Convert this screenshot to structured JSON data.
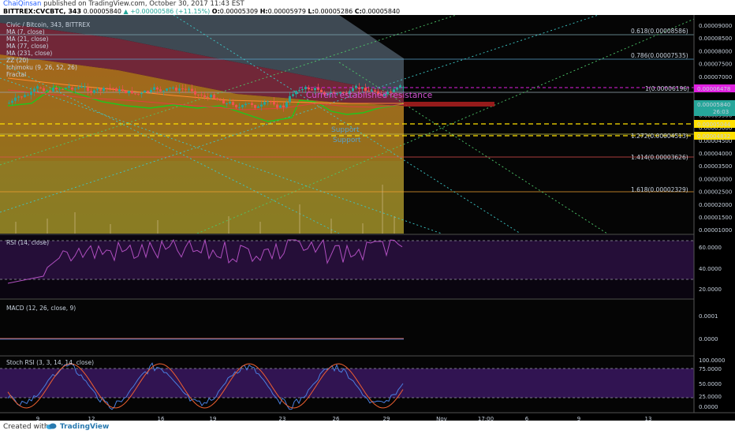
{
  "header": {
    "user": "ChaiQinsan",
    "published": "published on TradingView.com, October 30, 2017 11:43 EST",
    "symbol": "BITTREX:CVCBTC, 343",
    "price": "0.00005840",
    "change": "+0.00000586 (+11.15%)",
    "o_label": "O:",
    "o": "0.00005309",
    "h_label": "H:",
    "h": "0.00005979",
    "l_label": "L:",
    "l": "0.00005286",
    "c_label": "C:",
    "c": "0.00005840"
  },
  "legend": {
    "title": "Civic / Bitcoin, 343, BITTREX",
    "items": [
      "MA (7, close)",
      "MA (21, close)",
      "MA (77, close)",
      "MA (231, close)",
      "ZZ (20)",
      "Ichimoku (9, 26, 52, 26)",
      "Fractal"
    ]
  },
  "annotations": {
    "resistance": "Current established resistance",
    "support1": "Support",
    "support2": "Support"
  },
  "price_axis": {
    "ticks": [
      "0.00009000",
      "0.00008500",
      "0.00008000",
      "0.00007500",
      "0.00007000",
      "0.00006500",
      "0.00006000",
      "0.00005500",
      "0.00005000",
      "0.00004500",
      "0.00004000",
      "0.00003500",
      "0.00003000",
      "0.00002500",
      "0.00002000",
      "0.00001500",
      "0.00001000"
    ],
    "current_price": "0.00005840",
    "current_sub": "26:03",
    "resistance_price": "0.00006478",
    "support1_price": "0.00005044",
    "support2_price": "0.00004832"
  },
  "fib": [
    {
      "label": "0.618(0.00008586)",
      "color": "#7fa9b0"
    },
    {
      "label": "0.786(0.00007535)",
      "color": "#5aa0c8"
    },
    {
      "label": "1(0.00006196)",
      "color": "#9aa7b5"
    },
    {
      "label": "1.272(0.00004513)",
      "color": "#c8c850"
    },
    {
      "label": "1.414(0.00003626)",
      "color": "#e05050"
    },
    {
      "label": "1.618(0.00002329)",
      "color": "#f0a030"
    }
  ],
  "rsi": {
    "title": "RSI (14, close)",
    "ticks": [
      "60.0000",
      "40.0000",
      "20.0000"
    ]
  },
  "macd": {
    "title": "MACD (12, 26, close, 9)",
    "ticks": [
      "0.0001",
      "0.0000"
    ]
  },
  "stoch": {
    "title": "Stoch RSI (3, 3, 14, 14, close)",
    "ticks": [
      "100.0000",
      "75.0000",
      "50.0000",
      "25.0000",
      "0.0000"
    ]
  },
  "time_axis": {
    "labels": [
      "9",
      "12",
      "16",
      "19",
      "23",
      "26",
      "29",
      "Nov",
      "17:00",
      "6",
      "9",
      "13"
    ]
  },
  "footer": {
    "created_with": "Created with",
    "brand": "TradingView"
  },
  "colors": {
    "bull": "#26a69a",
    "bear": "#ef5350",
    "ma_green": "#1ec71e",
    "ma_red": "#e04040",
    "rsi_line": "#b04fc0",
    "stoch_k": "#4a7fe0",
    "stoch_d": "#f06030",
    "magenta": "#e020e0",
    "support_yellow": "#ffe000",
    "grid_cyan": "#3cc8c8",
    "fib_green": "#4ec86a"
  }
}
